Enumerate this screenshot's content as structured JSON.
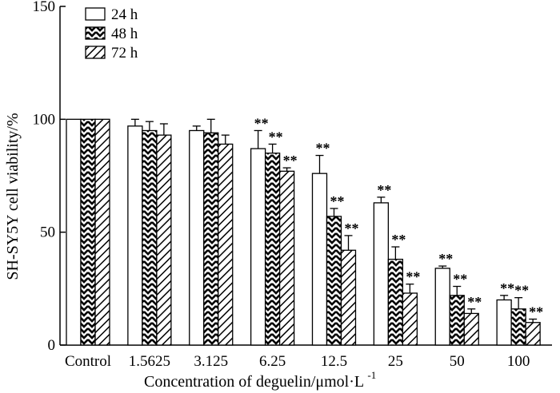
{
  "chart_data": {
    "type": "bar",
    "title": "",
    "xlabel": "Concentration of deguelin/μmol·L",
    "xlabel_sup": "-1",
    "ylabel": "SH-SY5Y cell viability/%",
    "ylim": [
      0,
      150
    ],
    "yticks": [
      0,
      50,
      100,
      150
    ],
    "categories": [
      "Control",
      "1.5625",
      "3.125",
      "6.25",
      "12.5",
      "25",
      "50",
      "100"
    ],
    "series": [
      {
        "name": "24 h",
        "pattern": "white",
        "values": [
          100,
          97,
          95,
          87,
          76,
          63,
          34,
          20
        ],
        "errors": [
          0,
          3,
          2,
          8,
          8,
          2.5,
          1,
          2
        ],
        "significance": [
          "",
          "",
          "",
          "**",
          "**",
          "**",
          "**",
          "**"
        ]
      },
      {
        "name": "48 h",
        "pattern": "zigzag",
        "values": [
          100,
          95,
          94,
          85,
          57,
          38,
          22,
          16
        ],
        "errors": [
          0,
          4,
          6,
          4,
          3.5,
          5.5,
          4,
          5
        ],
        "significance": [
          "",
          "",
          "",
          "**",
          "**",
          "**",
          "**",
          "**"
        ]
      },
      {
        "name": "72 h",
        "pattern": "diagonal",
        "values": [
          100,
          93,
          89,
          77,
          42,
          23,
          14,
          10
        ],
        "errors": [
          0,
          5,
          4,
          1.5,
          6.5,
          4,
          2,
          1.5
        ],
        "significance": [
          "",
          "",
          "",
          "**",
          "**",
          "**",
          "**",
          "**"
        ]
      }
    ],
    "legend_position": "top-left",
    "grid": false
  },
  "colors": {
    "axis": "#000000",
    "bar_fill": "#ffffff",
    "hatch": "#000000"
  }
}
